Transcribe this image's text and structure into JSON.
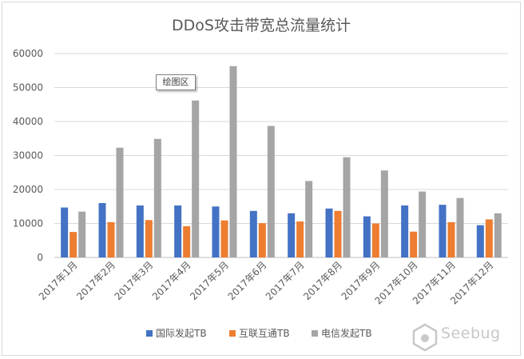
{
  "chart_data": {
    "type": "bar",
    "title": "DDoS攻击带宽总流量统计",
    "categories": [
      "2017年1月",
      "2017年2月",
      "2017年3月",
      "2017年4月",
      "2017年5月",
      "2017年6月",
      "2017年7月",
      "2017年8月",
      "2017年9月",
      "2017年10月",
      "2017年11月",
      "2017年12月"
    ],
    "series": [
      {
        "name": "国际发起TB",
        "color": "#4472c4",
        "values": [
          14700,
          16000,
          15300,
          15300,
          15000,
          13700,
          13000,
          14400,
          12100,
          15300,
          15500,
          9500
        ]
      },
      {
        "name": "互联互通TB",
        "color": "#ed7d31",
        "values": [
          7500,
          10400,
          11000,
          9200,
          10900,
          10100,
          10600,
          13700,
          10000,
          7600,
          10400,
          11200
        ]
      },
      {
        "name": "电信发起TB",
        "color": "#a5a5a5",
        "values": [
          13500,
          32300,
          34900,
          46200,
          56300,
          38700,
          22500,
          29500,
          25600,
          19400,
          17500,
          13000
        ]
      }
    ],
    "ylim": [
      0,
      60000
    ],
    "yticks": [
      "0",
      "10000",
      "20000",
      "30000",
      "40000",
      "50000",
      "60000"
    ],
    "grid": true,
    "legend_position": "bottom",
    "tooltip": "绘图区"
  },
  "watermark": {
    "text": "Seebug"
  }
}
